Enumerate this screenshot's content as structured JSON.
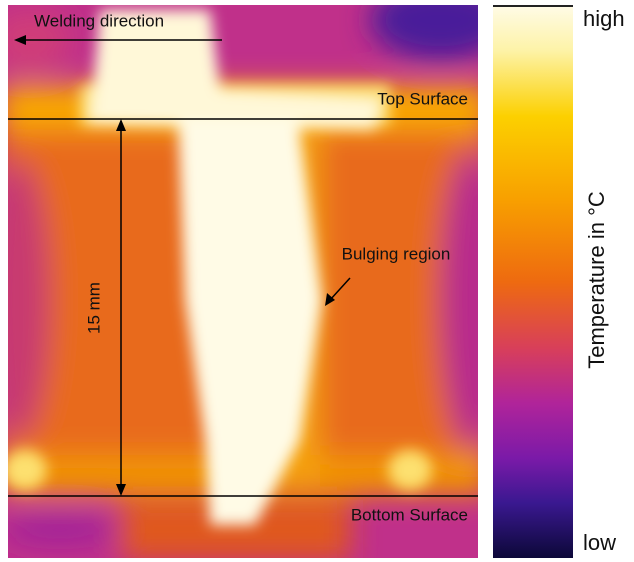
{
  "image": {
    "annotations": {
      "welding_direction": "Welding direction",
      "top_surface": "Top Surface",
      "bottom_surface": "Bottom Surface",
      "bulging_region": "Bulging region",
      "thickness": "15 mm"
    }
  },
  "colorbar": {
    "high": "high",
    "low": "low",
    "label": "Temperature in °C"
  }
}
